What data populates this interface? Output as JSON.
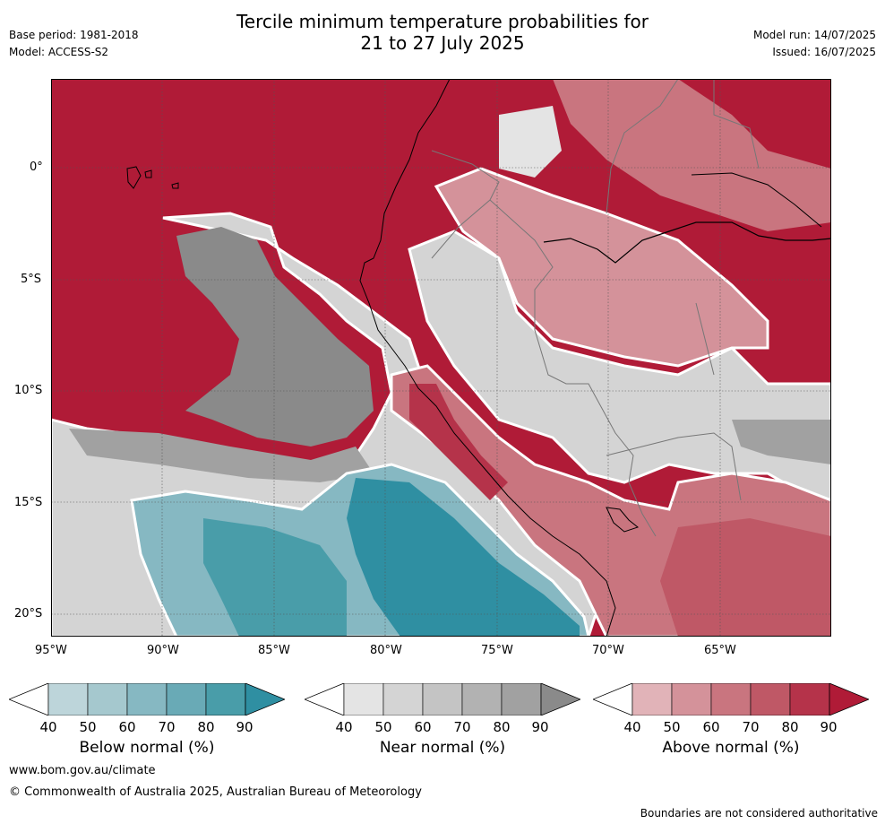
{
  "header": {
    "title_line1": "Tercile minimum temperature probabilities for",
    "title_line2": "21 to 27 July 2025",
    "base_period": "Base period: 1981-2018",
    "model": "Model: ACCESS-S2",
    "model_run": "Model run: 14/07/2025",
    "issued": "Issued: 16/07/2025"
  },
  "map": {
    "lat_labels": [
      "0°",
      "5°S",
      "10°S",
      "15°S",
      "20°S"
    ],
    "lon_labels": [
      "95°W",
      "90°W",
      "85°W",
      "80°W",
      "75°W",
      "70°W",
      "65°W"
    ]
  },
  "colorbars": [
    {
      "name": "below",
      "label": "Below normal (%)",
      "ticks": [
        "40",
        "50",
        "60",
        "70",
        "80",
        "90"
      ],
      "colors": [
        "#bdd5da",
        "#a5c8ce",
        "#86b8c2",
        "#69aab6",
        "#499da9",
        "#2f8fa2"
      ]
    },
    {
      "name": "near",
      "label": "Near normal (%)",
      "ticks": [
        "40",
        "50",
        "60",
        "70",
        "80",
        "90"
      ],
      "colors": [
        "#e4e4e4",
        "#d4d4d4",
        "#c4c4c4",
        "#b2b2b2",
        "#a1a1a1",
        "#8a8a8a"
      ]
    },
    {
      "name": "above",
      "label": "Above normal (%)",
      "ticks": [
        "40",
        "50",
        "60",
        "70",
        "80",
        "90"
      ],
      "colors": [
        "#e1b3b8",
        "#d4929a",
        "#c9757f",
        "#bf5866",
        "#b5334a",
        "#b01b37"
      ]
    }
  ],
  "footer": {
    "url": "www.bom.gov.au/climate",
    "copyright": "© Commonwealth of Australia 2025, Australian Bureau of Meteorology",
    "disclaimer": "Boundaries are not considered authoritative"
  }
}
